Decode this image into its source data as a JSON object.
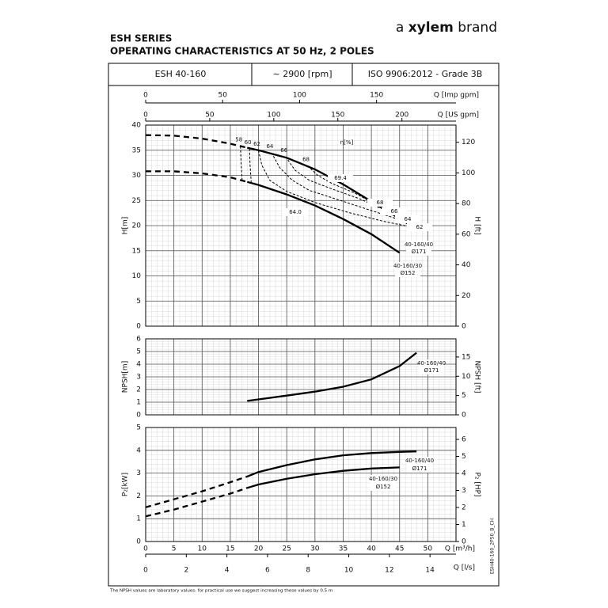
{
  "header": {
    "brand_prefix": "a",
    "brand_name": "xylem",
    "brand_suffix": "brand",
    "series_title": "ESH SERIES",
    "subtitle": "OPERATING CHARACTERISTICS AT 50 Hz, 2 POLES",
    "cells": [
      "ESH 40-160",
      "~ 2900 [rpm]",
      "ISO 9906:2012 - Grade 3B"
    ]
  },
  "footnote": "The NPSH values are laboratory values: for practical use we suggest increasing these values by 0.5 m",
  "drawing_code": "ESH40-160_2P50_B_CH",
  "chart_data": [
    {
      "type": "line",
      "ylabel": "H[m]",
      "y2label": "H [ft]",
      "xlim": [
        0,
        55
      ],
      "xticks": [
        0,
        5,
        10,
        15,
        20,
        25,
        30,
        35,
        40,
        45,
        50,
        55
      ],
      "ylim": [
        0,
        40
      ],
      "yticks": [
        0,
        5,
        10,
        15,
        20,
        25,
        30,
        35,
        40
      ],
      "y2lim": [
        0,
        131.2
      ],
      "y2ticks": [
        0,
        20,
        40,
        60,
        80,
        100,
        120
      ],
      "grid": true,
      "minor_divisions": 5,
      "top_axes": [
        {
          "label": "Q [Imp gpm]",
          "xlim": [
            0,
            201.6
          ],
          "xticks": [
            0,
            50,
            100,
            150
          ]
        },
        {
          "label": "Q [US gpm]",
          "xlim": [
            0,
            242.2
          ],
          "xticks": [
            0,
            50,
            100,
            150,
            200
          ]
        }
      ],
      "series": [
        {
          "color": "#000000",
          "x": [
            0,
            5,
            10,
            15,
            18,
            20,
            25,
            30,
            35,
            40,
            45,
            48
          ],
          "values": [
            38,
            37.9,
            37.3,
            36.3,
            35.5,
            35,
            33.5,
            31.2,
            28.2,
            24.8,
            21.4,
            19.3
          ],
          "solid_from_x": 18
        },
        {
          "color": "#000000",
          "x": [
            0,
            5,
            10,
            15,
            18,
            20,
            25,
            30,
            35,
            40,
            45
          ],
          "values": [
            30.8,
            30.8,
            30.4,
            29.6,
            28.7,
            28.1,
            26.2,
            24,
            21.3,
            18.3,
            14.6
          ],
          "solid_from_x": 18
        }
      ],
      "efficiency_curves": [
        {
          "label": "58",
          "x": [
            16.8,
            16.9,
            17.1
          ],
          "values": [
            35.8,
            32.5,
            29.0
          ]
        },
        {
          "label": "60",
          "x": [
            18.4,
            18.5,
            18.7
          ],
          "values": [
            35.3,
            32,
            28.7
          ]
        },
        {
          "label": "62",
          "x": [
            20,
            20.6,
            22,
            25,
            30,
            36,
            42,
            47.6
          ],
          "values": [
            35,
            32,
            29,
            26.8,
            24.6,
            22.6,
            20.9,
            19.6
          ]
        },
        {
          "label": "64",
          "x": [
            22.3,
            23.8,
            26,
            29,
            34,
            40,
            45.5
          ],
          "values": [
            34.5,
            31.5,
            29,
            27,
            25.2,
            23,
            21
          ]
        },
        {
          "label": "66",
          "x": [
            24.8,
            26.5,
            29,
            33,
            38,
            43.3
          ],
          "values": [
            33.7,
            31,
            29,
            27.3,
            25.3,
            22.6
          ]
        },
        {
          "label": "68",
          "x": [
            28.7,
            30.5,
            33,
            37,
            41.2
          ],
          "values": [
            31.9,
            30,
            28.4,
            26.5,
            24
          ]
        }
      ],
      "annotations": [
        [
          "η[%]"
        ],
        [
          "69.4"
        ],
        [
          "68"
        ],
        [
          "66"
        ],
        [
          "64"
        ],
        [
          "62"
        ],
        [
          "64.0"
        ],
        [
          "40-160/40",
          "Ø171"
        ],
        [
          "40-160/30",
          "Ø152"
        ]
      ]
    },
    {
      "type": "line",
      "ylabel": "NPSH[m]",
      "y2label": "NPSH [ft]",
      "xlim": [
        0,
        55
      ],
      "xticks": [
        0,
        5,
        10,
        15,
        20,
        25,
        30,
        35,
        40,
        45,
        50,
        55
      ],
      "ylim": [
        0,
        6
      ],
      "yticks": [
        0,
        1,
        2,
        3,
        4,
        5,
        6
      ],
      "y2lim": [
        0,
        19.7
      ],
      "y2ticks": [
        0,
        5,
        10,
        15
      ],
      "grid": true,
      "minor_divisions": 5,
      "series": [
        {
          "color": "#000000",
          "x": [
            18,
            20,
            25,
            30,
            35,
            40,
            45,
            48
          ],
          "values": [
            1.1,
            1.22,
            1.52,
            1.83,
            2.22,
            2.8,
            3.85,
            4.9
          ]
        }
      ],
      "annotations": [
        [
          "40-160/40",
          "Ø171"
        ]
      ]
    },
    {
      "type": "line",
      "ylabel": "P₂[kW]",
      "y2label": "P₂ [HP]",
      "xlim": [
        0,
        55
      ],
      "xticks": [
        0,
        5,
        10,
        15,
        20,
        25,
        30,
        35,
        40,
        45,
        50
      ],
      "xlabel": "Q [m³/h]",
      "ylim": [
        0,
        5
      ],
      "yticks": [
        0,
        1,
        2,
        3,
        4,
        5
      ],
      "y2lim": [
        0,
        6.7
      ],
      "y2ticks": [
        0,
        1,
        2,
        3,
        4,
        5,
        6
      ],
      "grid": true,
      "minor_divisions": 5,
      "bottom_axes": [
        {
          "label": "Q [l/s]",
          "xlim": [
            0,
            15.28
          ],
          "xticks": [
            0,
            2,
            4,
            6,
            8,
            10,
            12,
            14
          ]
        }
      ],
      "series": [
        {
          "color": "#000000",
          "x": [
            0,
            5,
            10,
            15,
            18,
            20,
            25,
            30,
            35,
            40,
            45,
            48
          ],
          "values": [
            1.5,
            1.85,
            2.2,
            2.6,
            2.85,
            3.05,
            3.35,
            3.6,
            3.78,
            3.88,
            3.93,
            3.95
          ],
          "solid_from_x": 18
        },
        {
          "color": "#000000",
          "x": [
            0,
            5,
            10,
            15,
            18,
            20,
            25,
            30,
            35,
            40,
            45
          ],
          "values": [
            1.1,
            1.4,
            1.75,
            2.1,
            2.35,
            2.5,
            2.75,
            2.95,
            3.1,
            3.2,
            3.25
          ],
          "solid_from_x": 18
        }
      ],
      "annotations": [
        [
          "40-160/40",
          "Ø171"
        ],
        [
          "40-160/30",
          "Ø152"
        ]
      ]
    }
  ]
}
